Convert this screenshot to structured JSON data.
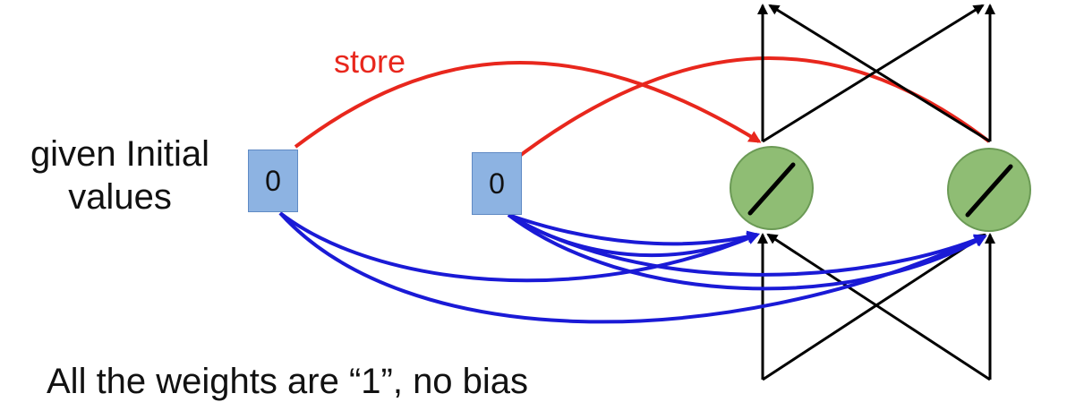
{
  "labels": {
    "given_line1": "given Initial",
    "given_line2": "values",
    "store": "store",
    "bottom_partial": "All the weights are “1”, no bias"
  },
  "memory_cells": [
    {
      "value": "0"
    },
    {
      "value": "0"
    }
  ],
  "neurons": [
    {
      "activation": "linear"
    },
    {
      "activation": "linear"
    }
  ],
  "colors": {
    "store_arrows": "#e8271d",
    "input_arrows": "#1a1ad6",
    "network_arrows": "#000000",
    "neuron_fill": "#8fbd74",
    "memory_fill": "#8db3e2"
  }
}
